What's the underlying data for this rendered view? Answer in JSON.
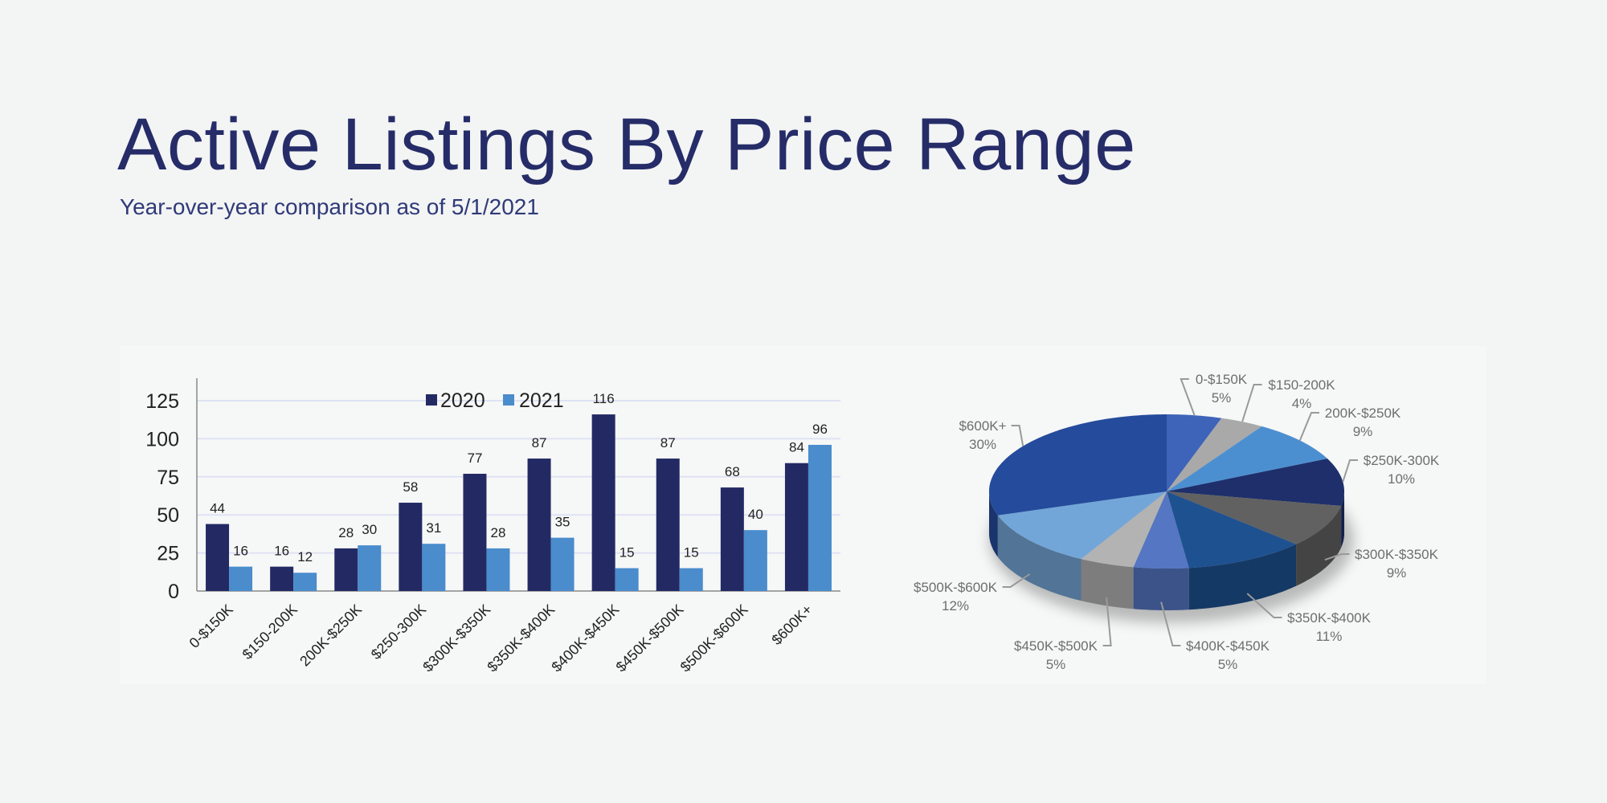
{
  "header": {
    "title": "Active Listings By Price Range",
    "subtitle": "Year-over-year comparison as of 5/1/2021"
  },
  "chart_data": [
    {
      "type": "bar",
      "categories": [
        "0-$150K",
        "$150-200K",
        "200K-$250K",
        "$250-300K",
        "$300K-$350K",
        "$350K-$400K",
        "$400K-$450K",
        "$450K-$500K",
        "$500K-$600K",
        "$600K+"
      ],
      "series": [
        {
          "name": "2020",
          "color": "#232a63",
          "values": [
            44,
            16,
            28,
            58,
            77,
            87,
            116,
            87,
            68,
            84
          ]
        },
        {
          "name": "2021",
          "color": "#4a8ccc",
          "values": [
            16,
            12,
            30,
            31,
            28,
            35,
            15,
            15,
            40,
            96
          ]
        }
      ],
      "yticks": [
        "0",
        "25",
        "50",
        "75",
        "100",
        "125"
      ],
      "ylim": [
        0,
        137
      ],
      "grid": true,
      "legend": "top-center"
    },
    {
      "type": "pie",
      "style": "3d",
      "slices": [
        {
          "label": "0-$150K",
          "pct_label": "5%",
          "value": 5,
          "color": "#3d64b8"
        },
        {
          "label": "$150-200K",
          "pct_label": "4%",
          "value": 4,
          "color": "#a9a9a9"
        },
        {
          "label": "200K-$250K",
          "pct_label": "9%",
          "value": 9,
          "color": "#4c8fd0"
        },
        {
          "label": "$250K-300K",
          "pct_label": "10%",
          "value": 10,
          "color": "#1e2f6c"
        },
        {
          "label": "$300K-$350K",
          "pct_label": "9%",
          "value": 9,
          "color": "#616161"
        },
        {
          "label": "$350K-$400K",
          "pct_label": "11%",
          "value": 11,
          "color": "#1e5190"
        },
        {
          "label": "$400K-$450K",
          "pct_label": "5%",
          "value": 5,
          "color": "#5576c2"
        },
        {
          "label": "$450K-$500K",
          "pct_label": "5%",
          "value": 5,
          "color": "#b3b3b3"
        },
        {
          "label": "$500K-$600K",
          "pct_label": "12%",
          "value": 12,
          "color": "#73a6d8"
        },
        {
          "label": "$600K+",
          "pct_label": "30%",
          "value": 30,
          "color": "#254b9c"
        }
      ]
    }
  ]
}
